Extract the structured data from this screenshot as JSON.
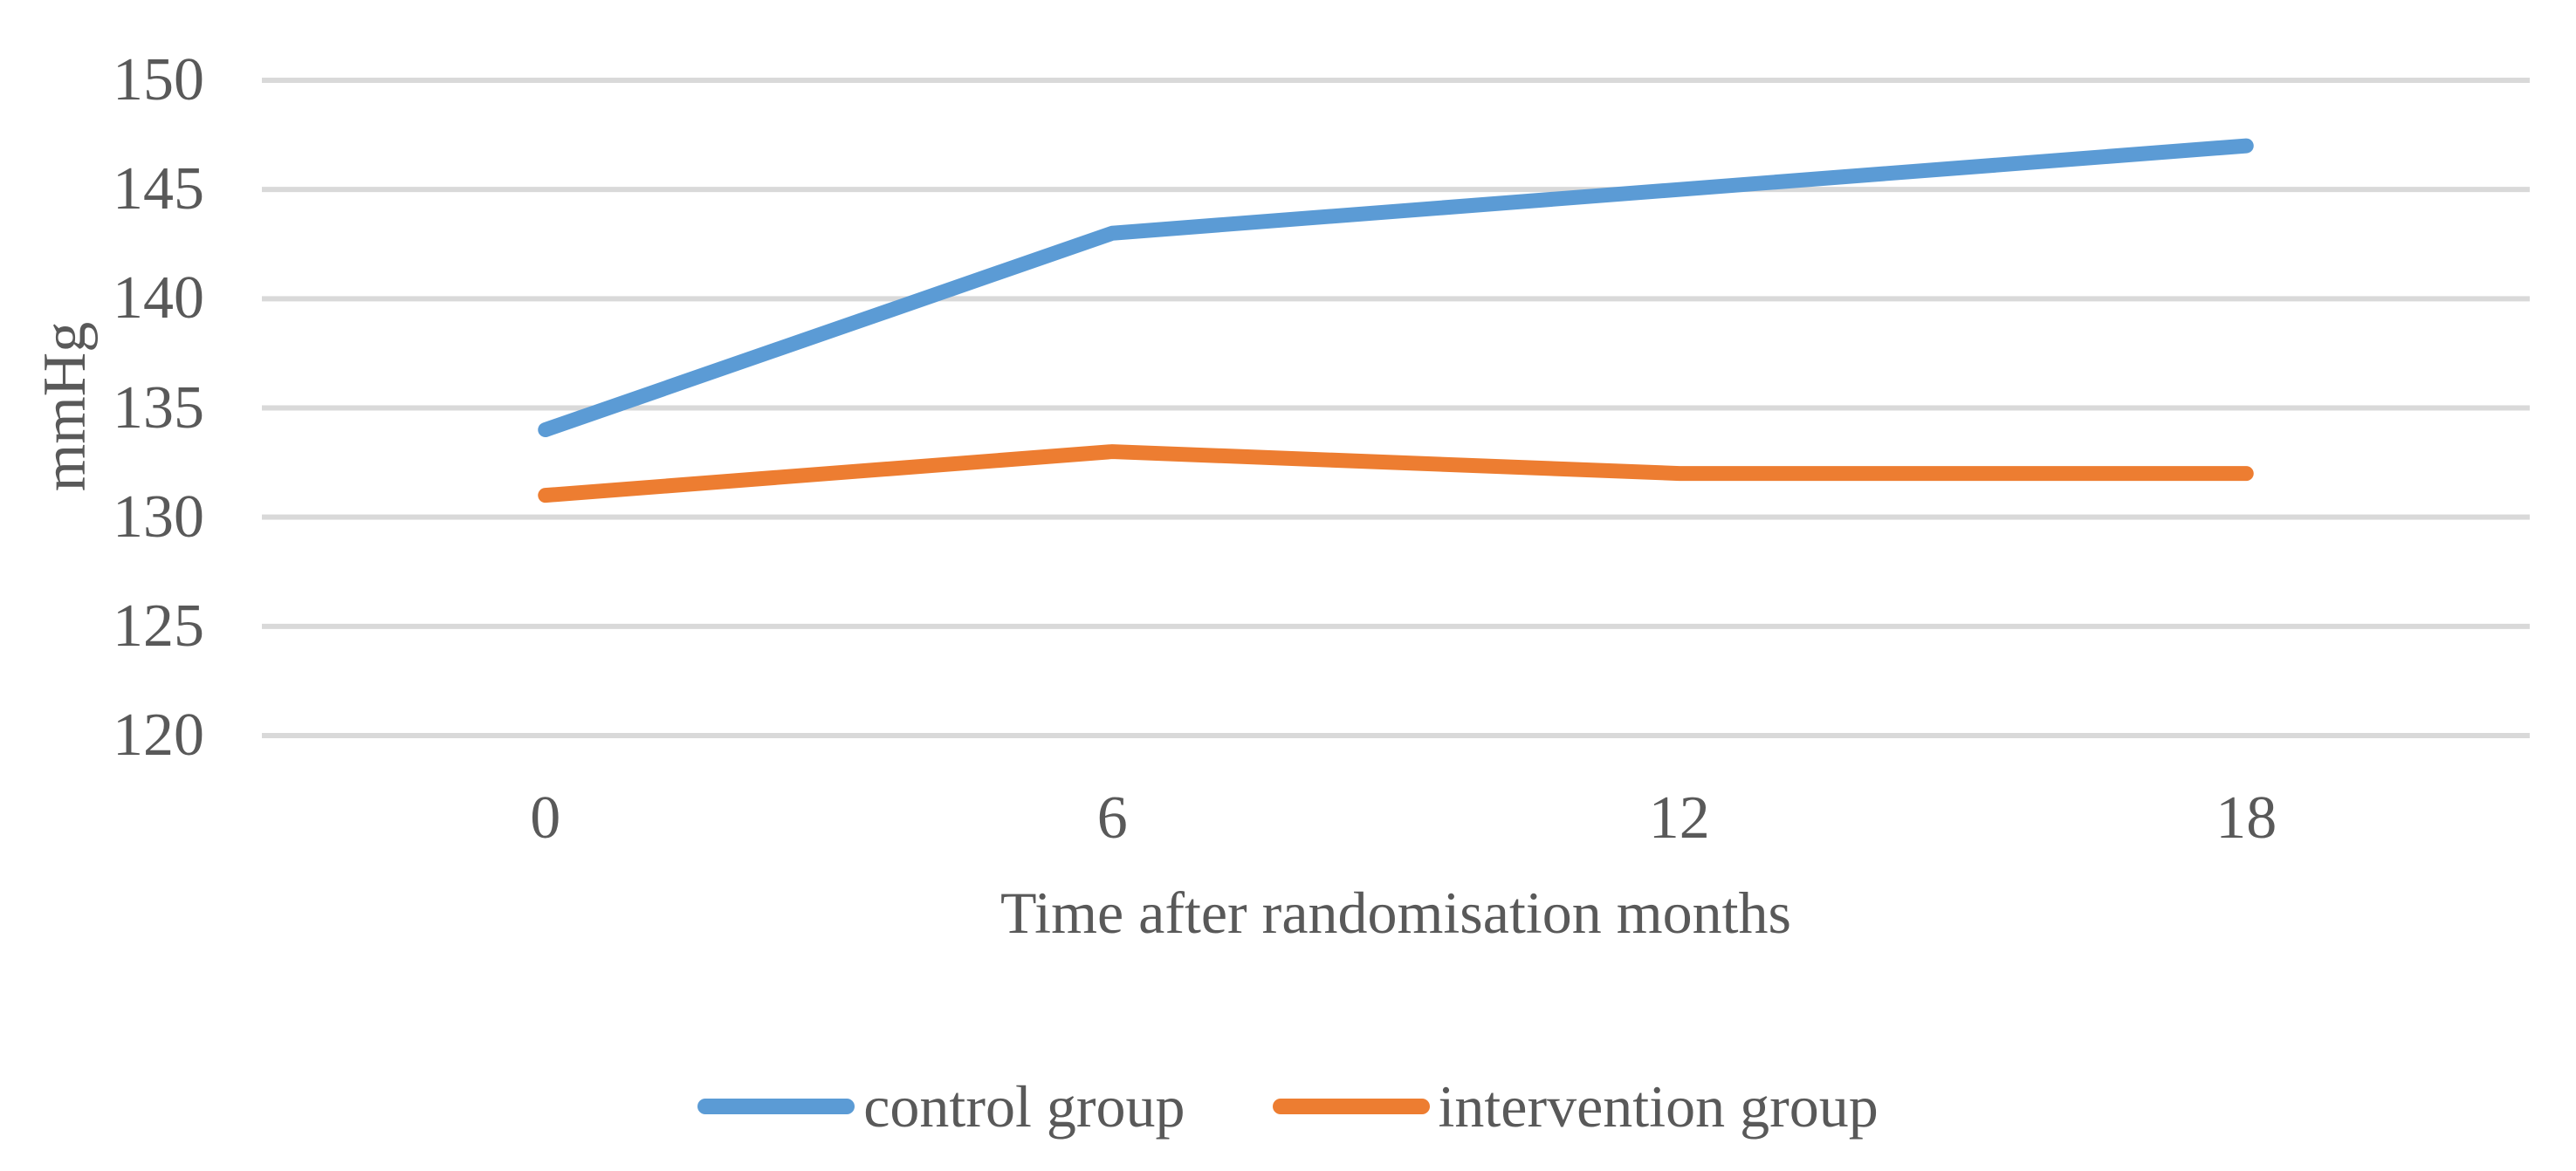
{
  "chart_data": {
    "type": "line",
    "categories": [
      "0",
      "6",
      "12",
      "18"
    ],
    "series": [
      {
        "name": "control group",
        "color": "#5B9BD5",
        "values": [
          134,
          143,
          145,
          147
        ]
      },
      {
        "name": "intervention group",
        "color": "#ED7D31",
        "values": [
          131,
          133,
          132,
          132
        ]
      }
    ],
    "xlabel": "Time after randomisation months",
    "ylabel": "mmHg",
    "ylim": [
      120,
      150
    ],
    "yticks": [
      150,
      145,
      140,
      135,
      130,
      125,
      120
    ],
    "grid": "horizontal-only",
    "gridline_color": "#D9D9D9",
    "axis_text_color": "#595959",
    "legend_position": "bottom",
    "line_width": 17
  }
}
